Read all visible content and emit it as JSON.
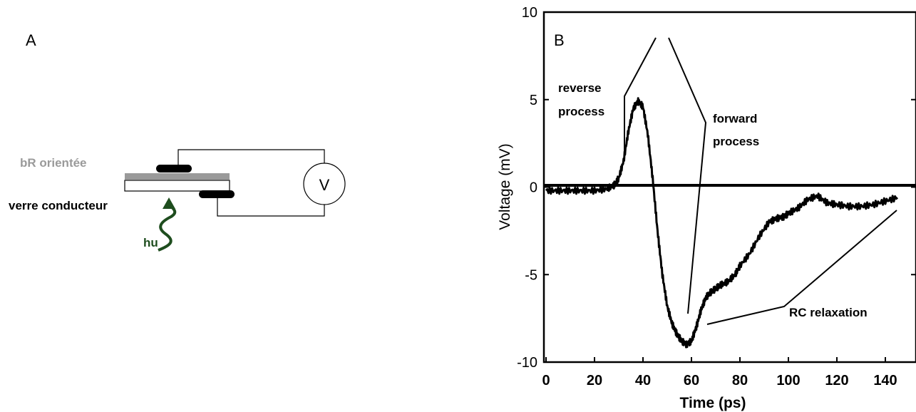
{
  "panel_a": {
    "label": "A",
    "bR_label": "bR orientée",
    "glass_label": "verre conducteur",
    "voltmeter_label": "V",
    "light_label": "hu"
  },
  "panel_b": {
    "label": "B",
    "annotations": {
      "reverse_line1": "reverse",
      "reverse_line2": "process",
      "forward_line1": "forward",
      "forward_line2": "process",
      "rc": "RC relaxation"
    }
  },
  "chart_data": {
    "type": "line",
    "xlabel": "Time (ps)",
    "ylabel": "Voltage (mV)",
    "xlim": [
      0,
      145
    ],
    "ylim": [
      -10,
      10
    ],
    "xticks": [
      0,
      20,
      40,
      60,
      80,
      100,
      120,
      140
    ],
    "yticks": [
      10,
      5,
      0,
      -5,
      -10
    ],
    "zero_line": true,
    "series": [
      {
        "x": [
          0,
          5,
          10,
          15,
          20,
          25,
          28,
          30,
          32,
          34,
          36,
          38,
          40,
          42,
          44,
          46,
          48,
          50,
          52,
          54,
          56,
          58,
          60,
          62,
          64,
          66,
          68,
          70,
          72,
          75,
          78,
          80,
          84,
          88,
          92,
          95,
          98,
          100,
          104,
          108,
          112,
          116,
          120,
          125,
          130,
          135,
          140,
          145
        ],
        "y": [
          -0.2,
          -0.2,
          -0.2,
          -0.2,
          -0.2,
          -0.1,
          0.1,
          0.5,
          1.5,
          3.2,
          4.5,
          4.9,
          4.6,
          3.0,
          0.5,
          -2.5,
          -5.0,
          -6.8,
          -7.8,
          -8.4,
          -8.8,
          -9.0,
          -8.8,
          -8.0,
          -7.0,
          -6.3,
          -6.0,
          -5.8,
          -5.6,
          -5.4,
          -5.0,
          -4.5,
          -3.8,
          -2.8,
          -2.0,
          -1.8,
          -1.7,
          -1.5,
          -1.2,
          -0.7,
          -0.5,
          -0.9,
          -1.0,
          -1.1,
          -1.1,
          -1.0,
          -0.8,
          -0.6
        ]
      }
    ]
  }
}
